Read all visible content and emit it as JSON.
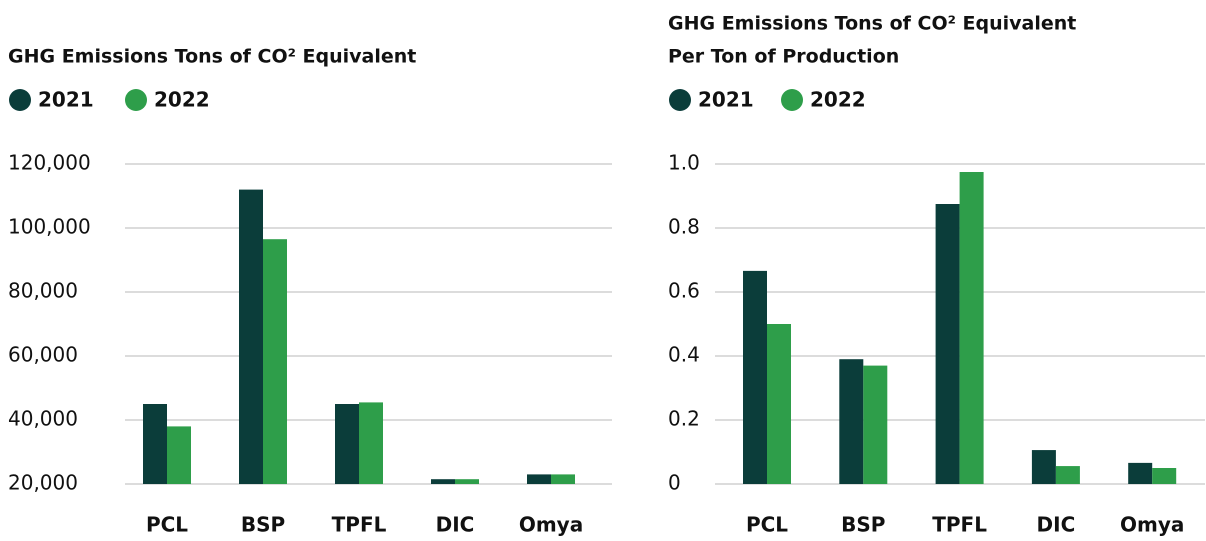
{
  "chart_data": [
    {
      "type": "bar",
      "title": [
        "GHG Emissions Tons of CO² Equivalent"
      ],
      "categories": [
        "PCL",
        "BSP",
        "TPFL",
        "DIC",
        "Omya"
      ],
      "series": [
        {
          "name": "2021",
          "color": "#0b3d3a",
          "values": [
            45000,
            112000,
            45000,
            21500,
            23000
          ]
        },
        {
          "name": "2022",
          "color": "#2e9e4a",
          "values": [
            38000,
            96500,
            45500,
            21500,
            23000
          ]
        }
      ],
      "ylim": [
        20000,
        120000
      ],
      "yticks": [
        {
          "value": 20000,
          "label": "20,000"
        },
        {
          "value": 40000,
          "label": "40,000"
        },
        {
          "value": 60000,
          "label": "60,000"
        },
        {
          "value": 80000,
          "label": "80,000"
        },
        {
          "value": 100000,
          "label": "100,000"
        },
        {
          "value": 120000,
          "label": "120,000"
        }
      ],
      "grid": true
    },
    {
      "type": "bar",
      "title": [
        "GHG Emissions Tons of CO² Equivalent",
        "Per Ton of Production"
      ],
      "categories": [
        "PCL",
        "BSP",
        "TPFL",
        "DIC",
        "Omya"
      ],
      "series": [
        {
          "name": "2021",
          "color": "#0b3d3a",
          "values": [
            0.666,
            0.39,
            0.875,
            0.106,
            0.066
          ]
        },
        {
          "name": "2022",
          "color": "#2e9e4a",
          "values": [
            0.5,
            0.37,
            0.975,
            0.056,
            0.05
          ]
        }
      ],
      "ylim": [
        0,
        1
      ],
      "yticks": [
        0,
        0.2,
        0.4,
        0.6,
        0.8,
        {
          "value": 1,
          "label": "1.0"
        }
      ],
      "grid": true
    }
  ]
}
